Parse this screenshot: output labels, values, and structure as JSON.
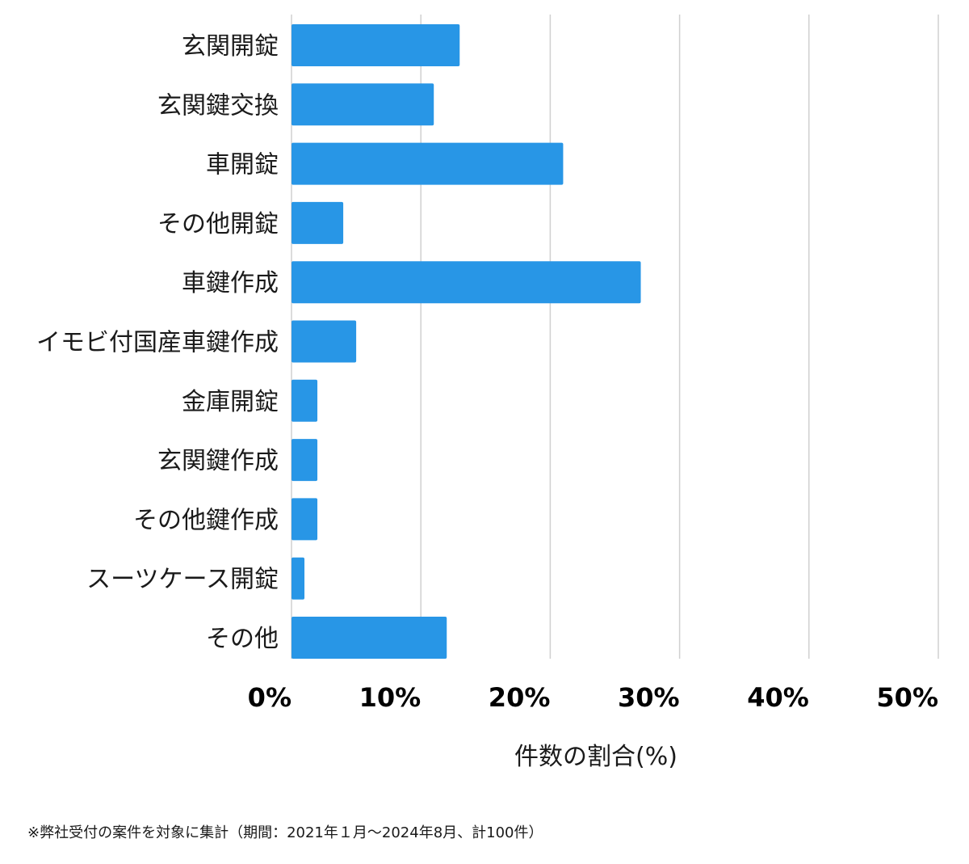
{
  "chart_data": {
    "type": "bar",
    "orientation": "horizontal",
    "categories": [
      "玄関開錠",
      "玄関鍵交換",
      "車開錠",
      "その他開錠",
      "車鍵作成",
      "イモビ付国産車鍵作成",
      "金庫開錠",
      "玄関鍵作成",
      "その他鍵作成",
      "スーツケース開錠",
      "その他"
    ],
    "values": [
      13,
      11,
      21,
      4,
      27,
      5,
      2,
      2,
      2,
      1,
      12
    ],
    "xlim": [
      0,
      50
    ],
    "xticks": [
      0,
      10,
      20,
      30,
      40,
      50
    ],
    "xtick_labels": [
      "0%",
      "10%",
      "20%",
      "30%",
      "40%",
      "50%"
    ],
    "xlabel": "件数の割合(%)",
    "ylabel": "",
    "title": "",
    "grid": "vertical",
    "bar_color": "#2896e6",
    "grid_color": "#d0d0d0"
  },
  "footnote": "※弊社受付の案件を対象に集計（期間：2021年１月〜2024年8月、計100件）"
}
